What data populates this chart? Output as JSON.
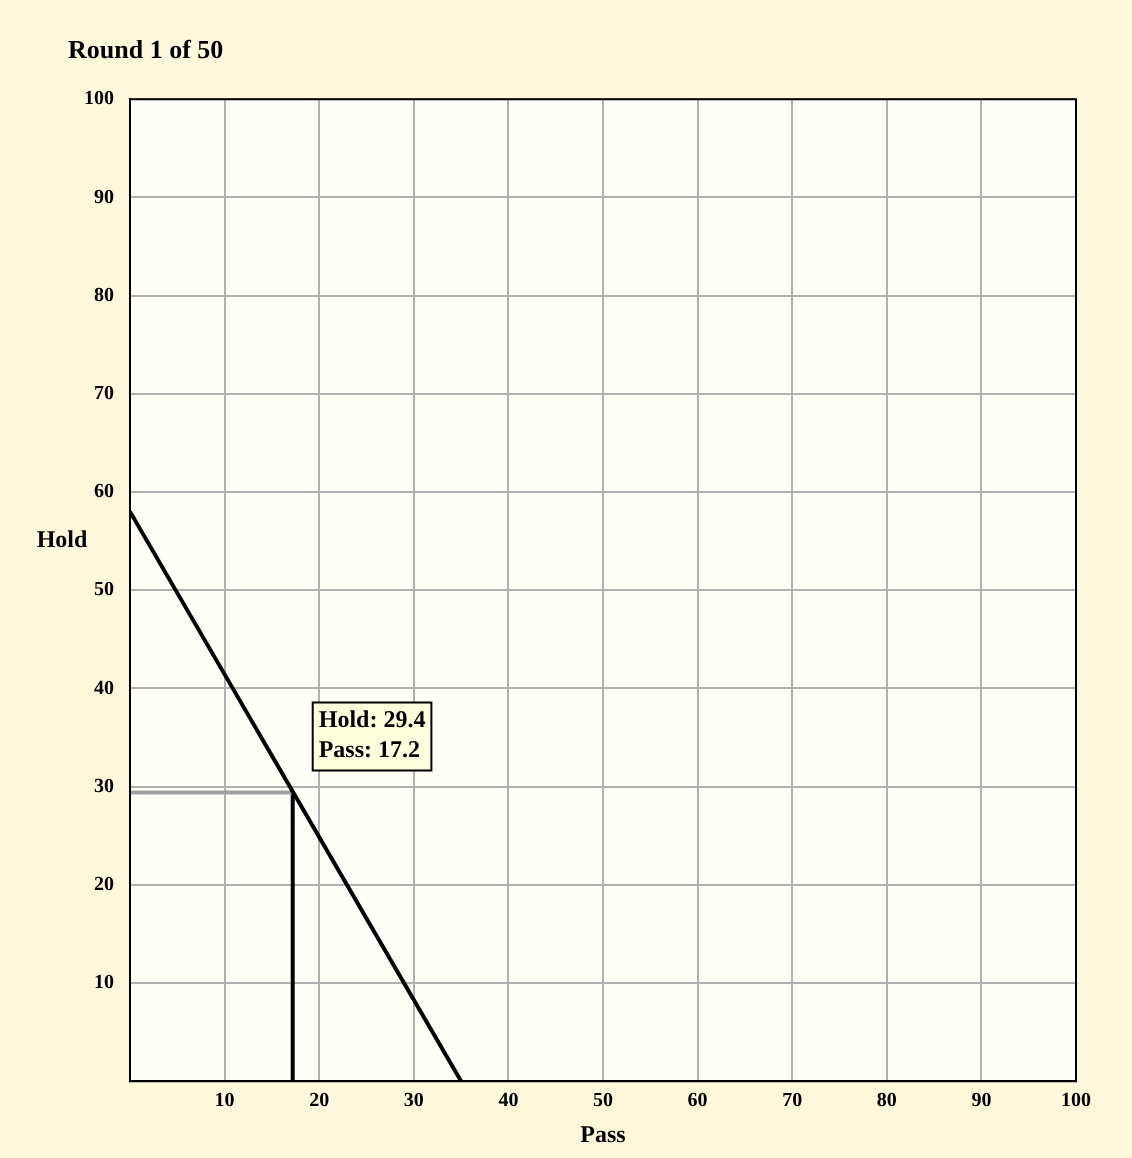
{
  "chart_data": {
    "type": "line",
    "title": "Round 1 of 50",
    "xlabel": "Pass",
    "ylabel": "Hold",
    "xlim": [
      0,
      100
    ],
    "ylim": [
      0,
      100
    ],
    "xticks": [
      {
        "value": 0,
        "label": null
      },
      10,
      20,
      30,
      40,
      50,
      60,
      70,
      80,
      90,
      100
    ],
    "yticks": [
      {
        "value": 0,
        "label": null
      },
      10,
      20,
      30,
      40,
      50,
      60,
      70,
      80,
      90,
      100
    ],
    "grid": true,
    "marker": "none",
    "line_style": "solid",
    "series": [
      {
        "color": "#000000",
        "x": [
          0,
          35
        ],
        "values": [
          58,
          0
        ]
      },
      {
        "color": "#a0a0a0",
        "x": [
          0,
          17.2
        ],
        "values": [
          29.4,
          29.4
        ]
      },
      {
        "color": "#000000",
        "x": [
          17.2,
          17.2
        ],
        "values": [
          0,
          29.4
        ]
      }
    ],
    "annotations": [
      {
        "text": "Hold: 29.4\nPass: 17.2",
        "x": 17.2,
        "y": 29.4
      }
    ]
  }
}
